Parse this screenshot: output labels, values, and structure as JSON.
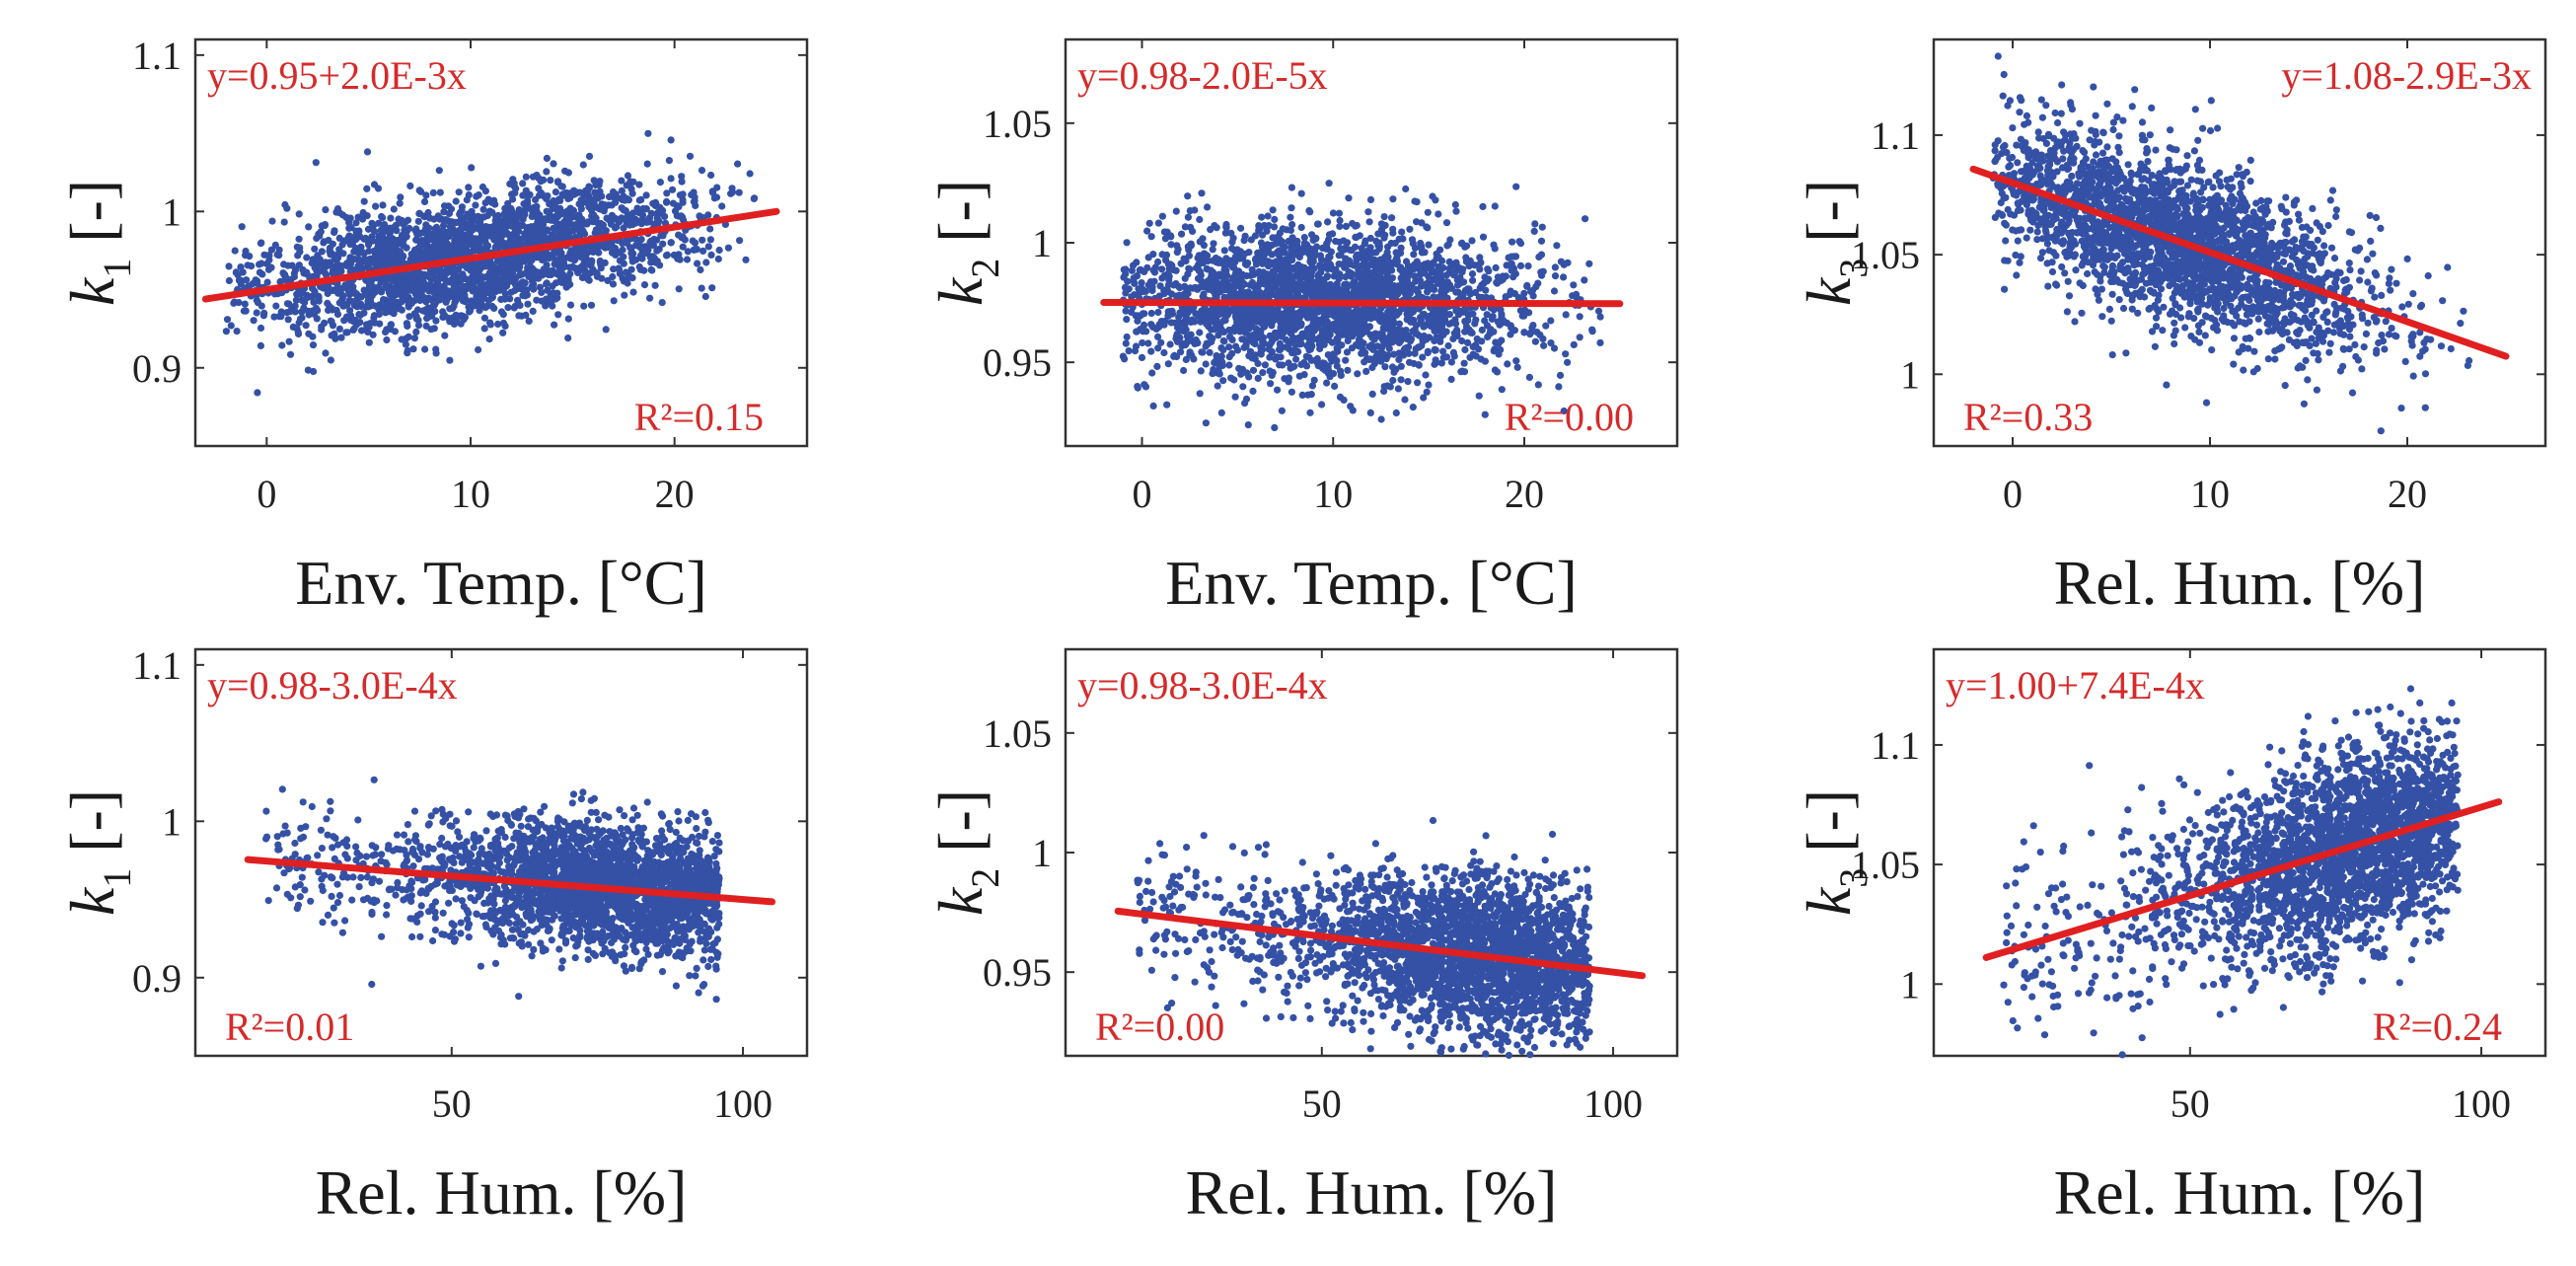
{
  "colors": {
    "points": "#3451a6",
    "fit": "#e02020",
    "annotation": "#d62a2a",
    "frame": "#333333"
  },
  "chart_data": [
    {
      "type": "scatter",
      "position": "top-left",
      "ylabel_var": "k",
      "ylabel_sub": "1",
      "ylabel_unit": "[-]",
      "xlabel": "Env. Temp. [°C]",
      "xlim": [
        -3.5,
        26.5
      ],
      "ylim": [
        0.85,
        1.11
      ],
      "xticks": [
        0,
        10,
        20
      ],
      "xtick_labels": [
        "0",
        "10",
        "20"
      ],
      "yticks": [
        0.9,
        1.0,
        1.1
      ],
      "ytick_labels": [
        "0.9",
        "1",
        "1.1"
      ],
      "fit": {
        "intercept": 0.95,
        "slope": 0.002,
        "x_range": [
          -3,
          25
        ]
      },
      "equation_label": "y=0.95+2.0E-3x",
      "equation_placement": "top-left",
      "r2_text": "R²=0.15",
      "r2_placement": "bottom-right",
      "sample": {
        "x_center": 10,
        "x_sd": 5.5,
        "x_range": [
          -2,
          24
        ],
        "noise_sd": 0.02,
        "seed": 11
      },
      "n_points": 2600
    },
    {
      "type": "scatter",
      "position": "top-middle",
      "ylabel_var": "k",
      "ylabel_sub": "2",
      "ylabel_unit": "[-]",
      "xlabel": "Env. Temp. [°C]",
      "xlim": [
        -4,
        28
      ],
      "ylim": [
        0.915,
        1.085
      ],
      "xticks": [
        0,
        10,
        20
      ],
      "xtick_labels": [
        "0",
        "10",
        "20"
      ],
      "yticks": [
        0.95,
        1.0,
        1.05
      ],
      "ytick_labels": [
        "0.95",
        "1",
        "1.05"
      ],
      "fit": {
        "intercept": 0.975,
        "slope": -2e-05,
        "x_range": [
          -2,
          25
        ]
      },
      "equation_label": "y=0.98-2.0E-5x",
      "equation_placement": "top-left",
      "r2_text": "R²=0.00",
      "r2_placement": "bottom-right",
      "sample": {
        "x_center": 9,
        "x_sd": 5.5,
        "x_range": [
          -1,
          24
        ],
        "noise_sd": 0.016,
        "seed": 23
      },
      "n_points": 2600
    },
    {
      "type": "scatter",
      "position": "top-right",
      "ylabel_var": "k",
      "ylabel_sub": "3",
      "ylabel_unit": "[-]",
      "xlabel": "Rel. Hum. [%]",
      "xlim": [
        -4,
        27
      ],
      "ylim": [
        0.97,
        1.14
      ],
      "xticks": [
        0,
        10,
        20
      ],
      "xtick_labels": [
        "0",
        "10",
        "20"
      ],
      "yticks": [
        1.0,
        1.05,
        1.1
      ],
      "ytick_labels": [
        "1",
        "1.05",
        "1.1"
      ],
      "fit": {
        "intercept": 1.08,
        "slope": -0.0029,
        "x_range": [
          -2,
          25
        ]
      },
      "equation_label": "y=1.08-2.9E-3x",
      "equation_placement": "top-right",
      "r2_text": "R²=0.33",
      "r2_placement": "bottom-left",
      "sample": {
        "x_center": 8,
        "x_sd": 5,
        "x_range": [
          -1,
          24
        ],
        "noise_sd": 0.017,
        "seed": 37
      },
      "n_points": 2600
    },
    {
      "type": "scatter",
      "position": "bottom-left",
      "ylabel_var": "k",
      "ylabel_sub": "1",
      "ylabel_unit": "[-]",
      "xlabel": "Rel. Hum. [%]",
      "xlim": [
        6,
        111
      ],
      "ylim": [
        0.85,
        1.11
      ],
      "xticks": [
        50,
        100
      ],
      "xtick_labels": [
        "50",
        "100"
      ],
      "yticks": [
        0.9,
        1.0,
        1.1
      ],
      "ytick_labels": [
        "0.9",
        "1",
        "1.1"
      ],
      "fit": {
        "intercept": 0.98,
        "slope": -0.0003,
        "x_range": [
          15,
          105
        ]
      },
      "equation_label": "y=0.98-3.0E-4x",
      "equation_placement": "top-left",
      "r2_text": "R²=0.01",
      "r2_placement": "bottom-left",
      "sample": {
        "x_center": 80,
        "x_sd": 16,
        "x_range": [
          18,
          96
        ],
        "noise_sd": 0.02,
        "seed": 41
      },
      "n_points": 2600
    },
    {
      "type": "scatter",
      "position": "bottom-middle",
      "ylabel_var": "k",
      "ylabel_sub": "2",
      "ylabel_unit": "[-]",
      "xlabel": "Rel. Hum. [%]",
      "xlim": [
        6,
        111
      ],
      "ylim": [
        0.915,
        1.085
      ],
      "xticks": [
        50,
        100
      ],
      "xtick_labels": [
        "50",
        "100"
      ],
      "yticks": [
        0.95,
        1.0,
        1.05
      ],
      "ytick_labels": [
        "0.95",
        "1",
        "1.05"
      ],
      "fit": {
        "intercept": 0.98,
        "slope": -0.0003,
        "x_range": [
          15,
          105
        ]
      },
      "equation_label": "y=0.98-3.0E-4x",
      "equation_placement": "top-left",
      "r2_text": "R²=0.00",
      "r2_placement": "bottom-left",
      "sample": {
        "x_center": 80,
        "x_sd": 16,
        "x_range": [
          18,
          96
        ],
        "noise_sd": 0.016,
        "seed": 53
      },
      "n_points": 2600
    },
    {
      "type": "scatter",
      "position": "bottom-right",
      "ylabel_var": "k",
      "ylabel_sub": "3",
      "ylabel_unit": "[-]",
      "xlabel": "Rel. Hum. [%]",
      "xlim": [
        6,
        111
      ],
      "ylim": [
        0.97,
        1.14
      ],
      "xticks": [
        50,
        100
      ],
      "xtick_labels": [
        "50",
        "100"
      ],
      "yticks": [
        1.0,
        1.05,
        1.1
      ],
      "ytick_labels": [
        "1",
        "1.05",
        "1.1"
      ],
      "fit": {
        "intercept": 1.0,
        "slope": 0.00074,
        "x_range": [
          15,
          103
        ]
      },
      "equation_label": "y=1.00+7.4E-4x",
      "equation_placement": "top-left",
      "r2_text": "R²=0.24",
      "r2_placement": "bottom-right",
      "sample": {
        "x_center": 80,
        "x_sd": 16,
        "x_range": [
          18,
          96
        ],
        "noise_sd": 0.02,
        "seed": 67
      },
      "n_points": 2600
    }
  ]
}
